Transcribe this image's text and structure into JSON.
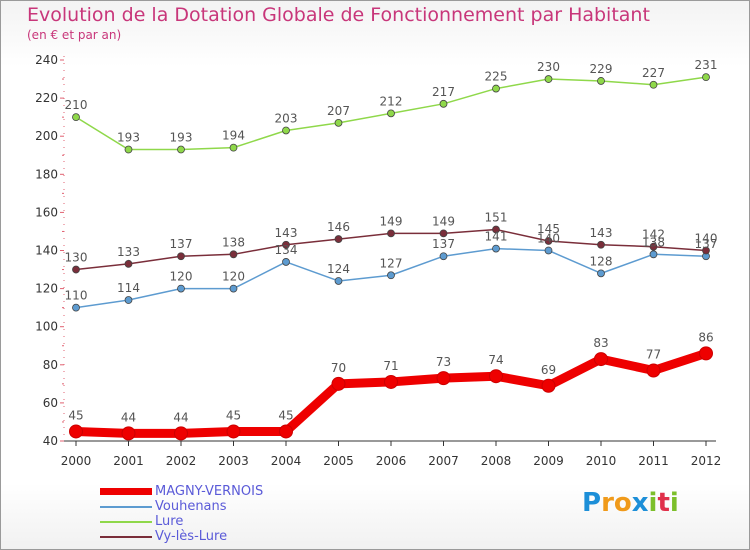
{
  "header": {
    "title": "Evolution de la Dotation Globale de Fonctionnement par Habitant",
    "subtitle": "(en € et par an)"
  },
  "logo": {
    "text": "Proxiti",
    "letters": [
      {
        "ch": "P",
        "color": "#1d8fd8"
      },
      {
        "ch": "r",
        "color": "#f09a1a"
      },
      {
        "ch": "o",
        "color": "#f09a1a"
      },
      {
        "ch": "x",
        "color": "#1d8fd8"
      },
      {
        "ch": "i",
        "color": "#7cbf2a"
      },
      {
        "ch": "t",
        "color": "#e0304a"
      },
      {
        "ch": "i",
        "color": "#7cbf2a"
      }
    ]
  },
  "chart_data": {
    "type": "line",
    "title": "Evolution de la Dotation Globale de Fonctionnement par Habitant",
    "subtitle": "(en € et par an)",
    "xlabel": "",
    "ylabel": "",
    "x": [
      "2000",
      "2001",
      "2002",
      "2003",
      "2004",
      "2005",
      "2006",
      "2007",
      "2008",
      "2009",
      "2010",
      "2011",
      "2012"
    ],
    "ylim": [
      40,
      240
    ],
    "yticks": [
      40,
      60,
      80,
      100,
      120,
      140,
      160,
      180,
      200,
      220,
      240
    ],
    "grid": false,
    "legend_position": "bottom-left",
    "series": [
      {
        "name": "MAGNY-VERNOIS",
        "color": "#ee0000",
        "emphasis": true,
        "values": [
          45,
          44,
          44,
          45,
          45,
          70,
          71,
          73,
          74,
          69,
          83,
          77,
          86
        ]
      },
      {
        "name": "Vouhenans",
        "color": "#5d9bd0",
        "emphasis": false,
        "values": [
          110,
          114,
          120,
          120,
          134,
          124,
          127,
          137,
          141,
          140,
          128,
          138,
          137
        ]
      },
      {
        "name": "Lure",
        "color": "#8fd84a",
        "emphasis": false,
        "values": [
          210,
          193,
          193,
          194,
          203,
          207,
          212,
          217,
          225,
          230,
          229,
          227,
          231
        ]
      },
      {
        "name": "Vy-lès-Lure",
        "color": "#7a2e3a",
        "emphasis": false,
        "values": [
          130,
          133,
          137,
          138,
          143,
          146,
          149,
          149,
          151,
          145,
          143,
          142,
          140
        ]
      }
    ]
  },
  "legend": {
    "label_color": "#5a5ad8"
  }
}
